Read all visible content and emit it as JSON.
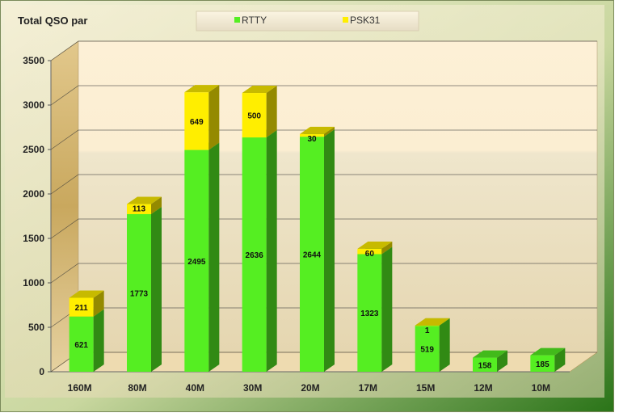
{
  "chart_data": {
    "type": "bar",
    "stacked": true,
    "three_d": true,
    "title": "Total QSO par",
    "categories": [
      "160M",
      "80M",
      "40M",
      "30M",
      "20M",
      "17M",
      "15M",
      "12M",
      "10M"
    ],
    "series": [
      {
        "name": "RTTY",
        "color": "#55ee22",
        "values": [
          621,
          1773,
          2495,
          2636,
          2644,
          1323,
          519,
          158,
          185
        ]
      },
      {
        "name": "PSK31",
        "color": "#ffee00",
        "values": [
          211,
          113,
          649,
          500,
          30,
          60,
          1,
          0,
          0
        ]
      }
    ],
    "ylim": [
      0,
      3500
    ],
    "yticks": [
      0,
      500,
      1000,
      1500,
      2000,
      2500,
      3000,
      3500
    ],
    "grid": true,
    "legend_position": "top-center",
    "data_labels": true
  },
  "colors": {
    "frame_start": "#f5f2dc",
    "frame_end": "#2f7a1c",
    "plot_back": "#fbeed4",
    "plot_back_fade": "#ebe0c6",
    "floor": "#eedbb0",
    "side_wall": "#d8c08a"
  }
}
